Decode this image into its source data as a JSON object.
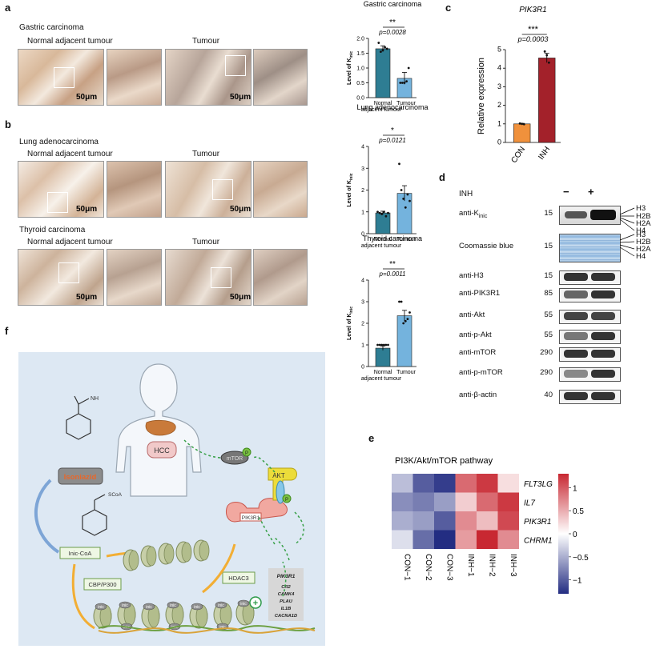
{
  "panels": {
    "a": "a",
    "b": "b",
    "c": "c",
    "d": "d",
    "e": "e",
    "f": "f"
  },
  "panel_a": {
    "title": "Gastric carcinoma",
    "normal_label": "Normal adjacent tumour",
    "tumour_label": "Tumour",
    "scale": "50μm"
  },
  "panel_b": {
    "lung_title": "Lung adenocarcinoma",
    "thyroid_title": "Thyroid carcinoma",
    "normal_label": "Normal adjacent tumour",
    "tumour_label": "Tumour",
    "scale": "50μm"
  },
  "bar_charts": {
    "ylabel": "Level of K",
    "ylabel_sub": "inic",
    "xcat1a": "Normal",
    "xcat1b": "adjacent tumour",
    "xcat2": "Tumour"
  },
  "chart_data": [
    {
      "type": "bar",
      "title": "Gastric carcinoma",
      "categories": [
        "Normal adjacent tumour",
        "Tumour"
      ],
      "values": [
        1.65,
        0.65
      ],
      "errors": [
        0.1,
        0.2
      ],
      "ylim": [
        0,
        2.0
      ],
      "yticks": [
        "0.0",
        "0.5",
        "1.0",
        "1.5",
        "2.0"
      ],
      "significance": "**",
      "p_value": "p=0.0028",
      "colors": [
        "#2e7d93",
        "#74b3dd"
      ]
    },
    {
      "type": "bar",
      "title": "Lung adenocarcinoma",
      "categories": [
        "Normal adjacent tumour",
        "Tumour"
      ],
      "values": [
        0.95,
        1.85
      ],
      "errors": [
        0.08,
        0.35
      ],
      "ylim": [
        0,
        4
      ],
      "yticks": [
        "0",
        "1",
        "2",
        "3",
        "4"
      ],
      "significance": "*",
      "p_value": "p=0.0121",
      "colors": [
        "#2e7d93",
        "#74b3dd"
      ]
    },
    {
      "type": "bar",
      "title": "Thyroid carcinoma",
      "categories": [
        "Normal adjacent tumour",
        "Tumour"
      ],
      "values": [
        0.85,
        2.35
      ],
      "errors": [
        0.1,
        0.25
      ],
      "ylim": [
        0,
        4
      ],
      "yticks": [
        "0",
        "1",
        "2",
        "3",
        "4"
      ],
      "significance": "**",
      "p_value": "p=0.0011",
      "colors": [
        "#2e7d93",
        "#74b3dd"
      ]
    },
    {
      "type": "bar",
      "title": "PIK3R1",
      "ylabel": "Relative expression",
      "categories": [
        "CON",
        "INH"
      ],
      "values": [
        1.0,
        4.55
      ],
      "errors": [
        0.03,
        0.25
      ],
      "ylim": [
        0,
        5
      ],
      "yticks": [
        "0",
        "1",
        "2",
        "3",
        "4",
        "5"
      ],
      "significance": "***",
      "p_value": "p=0.0003",
      "colors": [
        "#f0913c",
        "#a3212a"
      ]
    },
    {
      "type": "heatmap",
      "title": "PI3K/Akt/mTOR pathway",
      "rows": [
        "FLT3LG",
        "IL7",
        "PIK3R1",
        "CHRM1"
      ],
      "columns": [
        "CON−1",
        "CON−2",
        "CON−3",
        "INH−1",
        "INH−2",
        "INH−3"
      ],
      "values": [
        [
          -0.4,
          -1.0,
          -1.2,
          0.9,
          1.2,
          0.2
        ],
        [
          -0.7,
          -0.8,
          -0.6,
          0.3,
          0.9,
          1.2
        ],
        [
          -0.5,
          -0.6,
          -1.0,
          0.7,
          0.4,
          1.1
        ],
        [
          -0.2,
          -0.9,
          -1.3,
          0.6,
          1.3,
          0.7
        ]
      ],
      "colorbar_ticks": [
        "1",
        "0.5",
        "0",
        "−0.5",
        "−1"
      ]
    }
  ],
  "western": {
    "treatment": "INH",
    "minus": "−",
    "plus": "+",
    "rows": [
      {
        "label": "anti-K",
        "sub": "inic",
        "mw": "15"
      },
      {
        "label": "Coomassie blue",
        "sub": "",
        "mw": "15"
      },
      {
        "label": "anti-H3",
        "sub": "",
        "mw": "15"
      },
      {
        "label": "anti-PIK3R1",
        "sub": "",
        "mw": "85"
      },
      {
        "label": "anti-Akt",
        "sub": "",
        "mw": "55"
      },
      {
        "label": "anti-p-Akt",
        "sub": "",
        "mw": "55"
      },
      {
        "label": "anti-mTOR",
        "sub": "",
        "mw": "290"
      },
      {
        "label": "anti-p-mTOR",
        "sub": "",
        "mw": "290"
      },
      {
        "label": "anti-β-actin",
        "sub": "",
        "mw": "40"
      }
    ],
    "histones": [
      "H3",
      "H2B",
      "H2A",
      "H4"
    ]
  },
  "schematic": {
    "drug": "Isoniazid",
    "hcc": "HCC",
    "akt": "AKT",
    "mtor": "mTOR",
    "pik3r1": "PIK3R1",
    "p": "P",
    "inic_coa": "Inic-CoA",
    "coa": "SCoA",
    "nh2": "NH",
    "cbp": "CBP/P300",
    "hdac": "HDAC3",
    "inic": "inic",
    "genes": [
      "PIK3R1",
      "CR2",
      "CAMK4",
      "PLAU",
      "IL1B",
      "CACNA1D"
    ]
  }
}
